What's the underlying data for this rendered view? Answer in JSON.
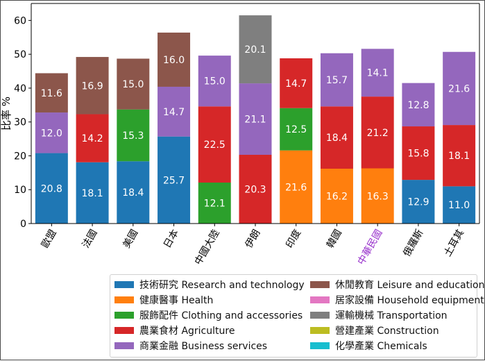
{
  "chart_data": {
    "type": "bar",
    "stacked": true,
    "ylabel": "比率 %",
    "ylim": [
      0,
      65
    ],
    "yticks": [
      0,
      10,
      20,
      30,
      40,
      50,
      60
    ],
    "grid": false,
    "legend_position": "bottom-right (below plot)",
    "categories": [
      "歐盟",
      "法國",
      "美國",
      "日本",
      "中國大陸",
      "伊朗",
      "印度",
      "韓國",
      "中華民國",
      "俄羅斯",
      "土耳其"
    ],
    "highlight_category": "中華民國",
    "highlight_color": "#9933cc",
    "series": [
      {
        "name": "技術研究 Research and technology",
        "color": "#1f77b4",
        "values": [
          20.8,
          18.1,
          18.4,
          25.7,
          0,
          0,
          0,
          0,
          0,
          12.9,
          11.0
        ]
      },
      {
        "name": "健康醫事 Health",
        "color": "#ff7f0e",
        "values": [
          0,
          0,
          0,
          0,
          0,
          0,
          21.6,
          16.2,
          16.3,
          0,
          0
        ]
      },
      {
        "name": "服飾配件 Clothing and accessories",
        "color": "#2ca02c",
        "values": [
          0,
          0,
          15.3,
          0,
          12.1,
          0,
          12.5,
          0,
          0,
          0,
          0
        ]
      },
      {
        "name": "農業食材 Agriculture",
        "color": "#d62728",
        "values": [
          0,
          14.2,
          0,
          0,
          22.5,
          20.3,
          14.7,
          18.4,
          21.2,
          15.8,
          18.1
        ]
      },
      {
        "name": "商業金融 Business services",
        "color": "#9467bd",
        "values": [
          12.0,
          0,
          0,
          14.7,
          15.0,
          21.1,
          0,
          15.7,
          14.1,
          12.8,
          21.6
        ]
      },
      {
        "name": "休閒教育 Leisure and education",
        "color": "#8c564b",
        "values": [
          11.6,
          16.9,
          15.0,
          16.0,
          0,
          0,
          0,
          0,
          0,
          0,
          0
        ]
      },
      {
        "name": "居家設備 Household equipment",
        "color": "#e377c2",
        "values": [
          0,
          0,
          0,
          0,
          0,
          0,
          0,
          0,
          0,
          0,
          0
        ]
      },
      {
        "name": "運輸機械 Transportation",
        "color": "#7f7f7f",
        "values": [
          0,
          0,
          0,
          0,
          0,
          20.1,
          0,
          0,
          0,
          0,
          0
        ]
      },
      {
        "name": "營建產業 Construction",
        "color": "#bcbd22",
        "values": [
          0,
          0,
          0,
          0,
          0,
          0,
          0,
          0,
          0,
          0,
          0
        ]
      },
      {
        "name": "化學產業 Chemicals",
        "color": "#17becf",
        "values": [
          0,
          0,
          0,
          0,
          0,
          0,
          0,
          0,
          0,
          0,
          0
        ]
      }
    ]
  }
}
